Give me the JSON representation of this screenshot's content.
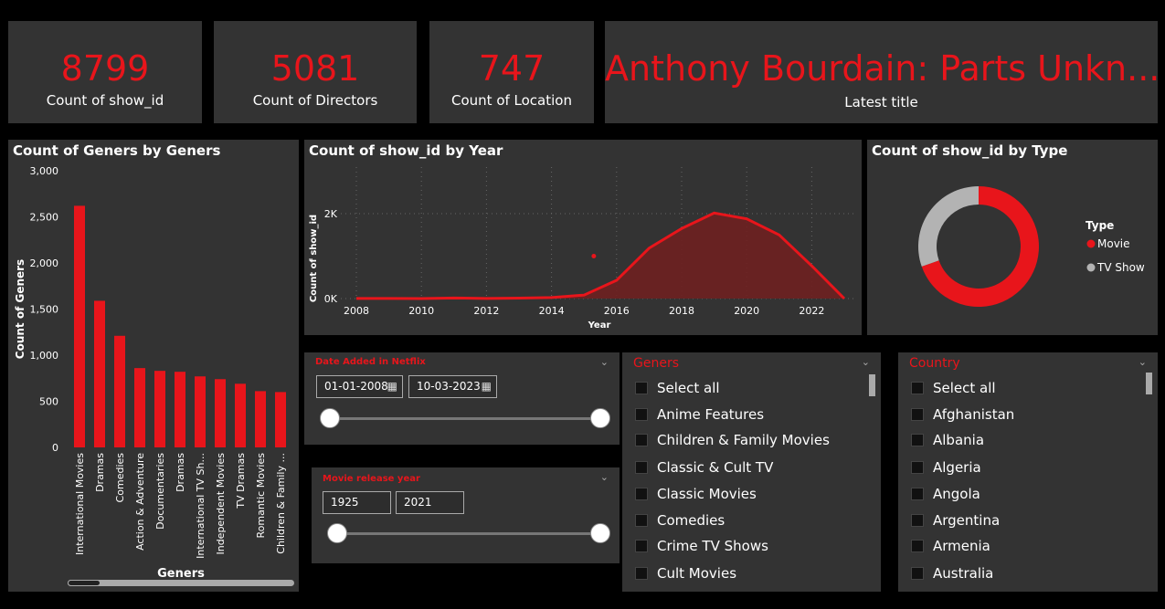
{
  "kpis": [
    {
      "value": "8799",
      "label": "Count of show_id"
    },
    {
      "value": "5081",
      "label": "Count of Directors"
    },
    {
      "value": "747",
      "label": "Count of Location"
    },
    {
      "value": "Anthony Bourdain: Parts Unkn...",
      "label": "Latest title"
    }
  ],
  "genre_chart": {
    "title": "Count of Geners by Geners"
  },
  "year_chart": {
    "title": "Count of show_id by Year"
  },
  "type_chart": {
    "title": "Count of show_id by Type"
  },
  "colors": {
    "accent": "#e8151b",
    "panel": "#333333",
    "background": "#000000",
    "secondary": "#b3b3b3"
  },
  "chart_data": [
    {
      "type": "bar",
      "title": "Count of Geners by Geners",
      "xlabel": "Geners",
      "ylabel": "Count of Geners",
      "ylim": [
        0,
        3000
      ],
      "yticks": [
        "3,000",
        "2,500",
        "2,000",
        "1,500",
        "1,000",
        "500",
        "0"
      ],
      "categories": [
        "International Movies",
        "Dramas",
        "Comedies",
        "Action & Adventure",
        "Documentaries",
        "Dramas",
        "International TV Sh...",
        "Independent Movies",
        "TV Dramas",
        "Romantic Movies",
        "Children & Family ..."
      ],
      "values": [
        2620,
        1590,
        1210,
        860,
        830,
        820,
        770,
        740,
        690,
        610,
        600
      ],
      "grid": false
    },
    {
      "type": "area",
      "title": "Count of show_id by Year",
      "xlabel": "Year",
      "ylabel": "Count of show_id",
      "xlim": [
        2008,
        2023
      ],
      "ylim": [
        0,
        2000
      ],
      "xticks": [
        "2008",
        "2010",
        "2012",
        "2014",
        "2016",
        "2018",
        "2020",
        "2022"
      ],
      "yticks": [
        "2K",
        "0K"
      ],
      "x": [
        2008,
        2009,
        2010,
        2011,
        2012,
        2013,
        2014,
        2015,
        2016,
        2017,
        2018,
        2019,
        2020,
        2021,
        2022,
        2023
      ],
      "y": [
        2,
        2,
        1,
        13,
        3,
        11,
        24,
        82,
        429,
        1188,
        1649,
        2016,
        1879,
        1498,
        770,
        0
      ],
      "outlier": {
        "x": 2015.3,
        "y": 1000
      },
      "grid": true
    },
    {
      "type": "pie",
      "title": "Count of show_id by Type",
      "legend_title": "Type",
      "legend_position": "right",
      "labels": [
        "Movie",
        "TV Show"
      ],
      "values": [
        6126,
        2673
      ],
      "colors": [
        "#e8151b",
        "#b3b3b3"
      ]
    }
  ],
  "date_slicer": {
    "title": "Date Added in Netflix",
    "start": "01-01-2008",
    "end": "10-03-2023",
    "calendar_icon": "calendar-icon"
  },
  "year_slicer": {
    "title": "Movie release year",
    "start": "1925",
    "end": "2021"
  },
  "genres_slicer": {
    "title": "Geners",
    "items": [
      "Select all",
      "Anime Features",
      "Children & Family Movies",
      "Classic & Cult TV",
      "Classic Movies",
      "Comedies",
      "Crime TV Shows",
      "Cult Movies"
    ]
  },
  "country_slicer": {
    "title": "Country",
    "items": [
      "Select all",
      "Afghanistan",
      "Albania",
      "Algeria",
      "Angola",
      "Argentina",
      "Armenia",
      "Australia"
    ]
  }
}
